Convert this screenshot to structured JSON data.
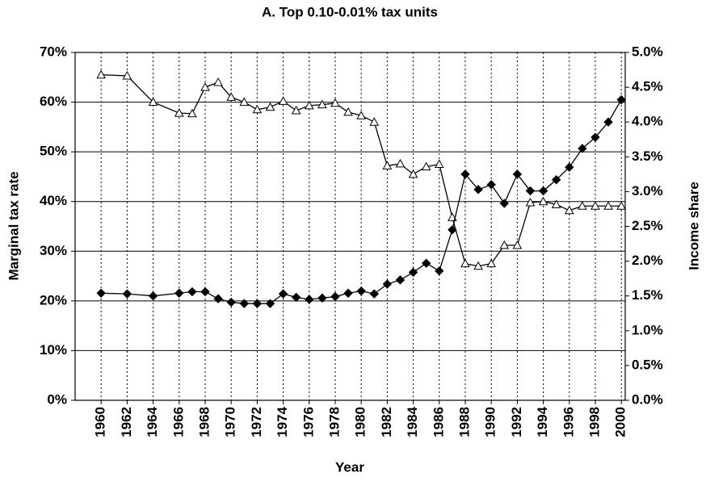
{
  "chart_data": {
    "type": "line",
    "title": "A. Top 0.10-0.01% tax units",
    "xlabel": "Year",
    "ylabel": "Marginal tax rate",
    "y2label": "Income share",
    "x": [
      1960,
      1962,
      1964,
      1966,
      1967,
      1968,
      1969,
      1970,
      1971,
      1972,
      1973,
      1974,
      1975,
      1976,
      1977,
      1978,
      1979,
      1980,
      1981,
      1982,
      1983,
      1984,
      1985,
      1986,
      1987,
      1988,
      1989,
      1990,
      1991,
      1992,
      1993,
      1994,
      1995,
      1996,
      1997,
      1998,
      1999,
      2000
    ],
    "series": [
      {
        "color": "#000000",
        "marker": "triangle",
        "axis": "y",
        "values": [
          65.5,
          65.3,
          60,
          57.8,
          57.7,
          63,
          64,
          61,
          60,
          58.5,
          59,
          60.2,
          58.3,
          59.3,
          59.5,
          59.8,
          58,
          57.3,
          56,
          47.2,
          47.6,
          45.5,
          47,
          47.5,
          36.8,
          27.5,
          27,
          27.5,
          31.2,
          31.2,
          39.8,
          40,
          39.4,
          38.2,
          39.1,
          39.1,
          39.1,
          39.1
        ]
      },
      {
        "color": "#000000",
        "marker": "diamond",
        "axis": "y2",
        "values": [
          1.54,
          1.53,
          1.5,
          1.54,
          1.56,
          1.56,
          1.46,
          1.41,
          1.39,
          1.39,
          1.39,
          1.53,
          1.48,
          1.45,
          1.47,
          1.49,
          1.54,
          1.57,
          1.53,
          1.67,
          1.73,
          1.84,
          1.97,
          1.86,
          2.45,
          3.25,
          3.03,
          3.1,
          2.83,
          3.25,
          3.01,
          3.01,
          3.17,
          3.35,
          3.62,
          3.78,
          4.0,
          4.32
        ]
      }
    ],
    "xlim": [
      1958,
      2000.3
    ],
    "xticks": [
      1960,
      1962,
      1964,
      1966,
      1968,
      1970,
      1972,
      1974,
      1976,
      1978,
      1980,
      1982,
      1984,
      1986,
      1988,
      1990,
      1992,
      1994,
      1996,
      1998,
      2000
    ],
    "ylim": [
      0,
      70
    ],
    "yticks": [
      {
        "value": 0,
        "label": "0%"
      },
      {
        "value": 10,
        "label": "10%"
      },
      {
        "value": 20,
        "label": "20%"
      },
      {
        "value": 30,
        "label": "30%"
      },
      {
        "value": 40,
        "label": "40%"
      },
      {
        "value": 50,
        "label": "50%"
      },
      {
        "value": 60,
        "label": "60%"
      },
      {
        "value": 70,
        "label": "70%"
      }
    ],
    "y2lim": [
      0,
      5
    ],
    "y2ticks": [
      {
        "value": 0,
        "label": "0.0%"
      },
      {
        "value": 0.5,
        "label": "0.5%"
      },
      {
        "value": 1,
        "label": "1.0%"
      },
      {
        "value": 1.5,
        "label": "1.5%"
      },
      {
        "value": 2,
        "label": "2.0%"
      },
      {
        "value": 2.5,
        "label": "2.5%"
      },
      {
        "value": 3,
        "label": "3.0%"
      },
      {
        "value": 3.5,
        "label": "3.5%"
      },
      {
        "value": 4,
        "label": "4.0%"
      },
      {
        "value": 4.5,
        "label": "4.5%"
      },
      {
        "value": 5,
        "label": "5.0%"
      }
    ],
    "grid": true
  }
}
